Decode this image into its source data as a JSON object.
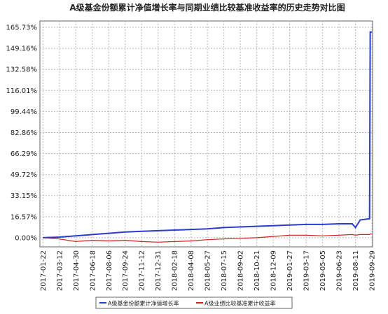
{
  "chart_data": {
    "type": "line",
    "title": "A级基金份额累计净值增长率与同期业绩比较基准收益率的历史走势对比图",
    "x": [
      "2017-01-22",
      "2017-03-12",
      "2017-04-30",
      "2017-06-18",
      "2017-08-06",
      "2017-09-24",
      "2017-11-12",
      "2017-12-31",
      "2018-02-18",
      "2018-04-08",
      "2018-05-27",
      "2018-07-15",
      "2018-09-02",
      "2018-10-21",
      "2018-12-09",
      "2019-01-27",
      "2019-03-17",
      "2019-05-05",
      "2019-06-23",
      "2019-08-01",
      "2019-08-11",
      "2019-08-25",
      "2019-09-22",
      "2019-09-24",
      "2019-09-29"
    ],
    "series": [
      {
        "name": "A级基金份额累计净值增长率",
        "color": "#2b3bcc",
        "values": [
          0,
          0.5,
          1.5,
          2.5,
          3.5,
          4.5,
          5,
          5.5,
          6,
          6.5,
          7,
          8,
          8.5,
          9,
          9.5,
          10,
          10.5,
          10.5,
          11,
          11,
          8,
          14,
          15,
          162,
          162
        ]
      },
      {
        "name": "A级业绩比较基准累计收益率",
        "color": "#d02020",
        "values": [
          0,
          -1,
          -3,
          -2,
          -2.5,
          -2,
          -3,
          -3.5,
          -3,
          -2.5,
          -1.5,
          -1,
          -0.5,
          0,
          1,
          2,
          2,
          1.5,
          2,
          2.5,
          2,
          2.5,
          2.5,
          3,
          3
        ]
      }
    ],
    "xlim": [
      "2017-01-13",
      "2019-10-01"
    ],
    "xticks": [
      "2017-01-22",
      "2017-03-12",
      "2017-04-30",
      "2017-06-18",
      "2017-08-06",
      "2017-09-24",
      "2017-11-12",
      "2017-12-31",
      "2018-02-18",
      "2018-04-08",
      "2018-05-27",
      "2018-07-15",
      "2018-09-02",
      "2018-10-21",
      "2018-12-09",
      "2019-01-27",
      "2019-03-17",
      "2019-05-05",
      "2019-06-23",
      "2019-08-11",
      "2019-09-29"
    ],
    "ylim": [
      -7.2,
      170.7
    ],
    "yticks": [
      {
        "value": 0,
        "label": "0.00%"
      },
      {
        "value": 16.57,
        "label": "16.57%"
      },
      {
        "value": 33.15,
        "label": "33.15%"
      },
      {
        "value": 49.72,
        "label": "49.72%"
      },
      {
        "value": 66.29,
        "label": "66.29%"
      },
      {
        "value": 82.86,
        "label": "82.86%"
      },
      {
        "value": 99.44,
        "label": "99.44%"
      },
      {
        "value": 116.01,
        "label": "116.01%"
      },
      {
        "value": 132.58,
        "label": "132.58%"
      },
      {
        "value": 149.16,
        "label": "149.16%"
      },
      {
        "value": 165.73,
        "label": "165.73%"
      }
    ],
    "grid": true
  }
}
